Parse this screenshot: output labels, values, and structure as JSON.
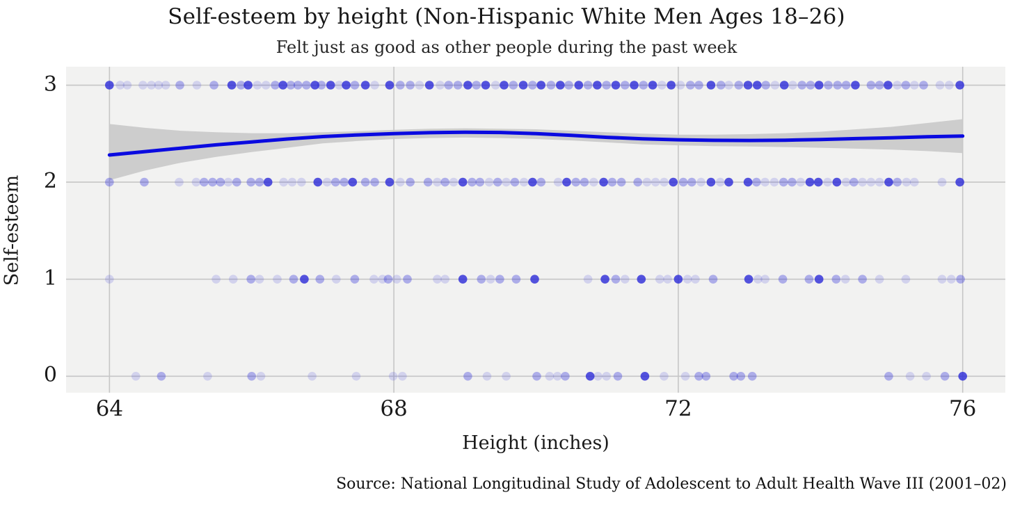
{
  "chart_data": {
    "type": "scatter",
    "title": "Self-esteem by height (Non-Hispanic White Men Ages 18–26)",
    "subtitle": "Felt just as good as other people during the past week",
    "xlabel": "Height (inches)",
    "ylabel": "Self-esteem",
    "caption": "Source: National Longitudinal Study of Adolescent to Adult Health Wave III (2001–02)",
    "x_ticks": [
      64,
      68,
      72,
      76
    ],
    "y_ticks": [
      0,
      1,
      2,
      3
    ],
    "xlim": [
      63.39,
      76.6
    ],
    "ylim": [
      -0.17,
      3.19
    ],
    "grid": true,
    "legend": "none",
    "colors": {
      "point": "#2a29d8",
      "trend": "#0a0ae0",
      "band": "#c9c9c9",
      "plot_bg": "#f2f2f1",
      "grid": "#c6c6c6",
      "text": "#1a1a1a"
    },
    "point_radius": 6.3,
    "alpha": {
      "l": 0.16,
      "m": 0.34,
      "d": 0.8
    },
    "trend_note": "loess fit of self-esteem on height with 95% confidence band",
    "trend": [
      [
        64,
        2.28
      ],
      [
        64.5,
        2.315
      ],
      [
        65,
        2.35
      ],
      [
        65.5,
        2.385
      ],
      [
        66,
        2.415
      ],
      [
        66.5,
        2.445
      ],
      [
        67,
        2.47
      ],
      [
        67.5,
        2.487
      ],
      [
        68,
        2.5
      ],
      [
        68.5,
        2.51
      ],
      [
        69,
        2.515
      ],
      [
        69.5,
        2.512
      ],
      [
        70,
        2.5
      ],
      [
        70.5,
        2.482
      ],
      [
        71,
        2.462
      ],
      [
        71.5,
        2.447
      ],
      [
        72,
        2.437
      ],
      [
        72.5,
        2.431
      ],
      [
        73,
        2.43
      ],
      [
        73.5,
        2.433
      ],
      [
        74,
        2.44
      ],
      [
        74.5,
        2.449
      ],
      [
        75,
        2.458
      ],
      [
        75.5,
        2.468
      ],
      [
        76,
        2.475
      ]
    ],
    "band": [
      [
        64,
        2.02,
        2.6
      ],
      [
        64.5,
        2.12,
        2.56
      ],
      [
        65,
        2.2,
        2.53
      ],
      [
        65.5,
        2.26,
        2.515
      ],
      [
        66,
        2.31,
        2.505
      ],
      [
        66.5,
        2.355,
        2.505
      ],
      [
        67,
        2.4,
        2.515
      ],
      [
        67.5,
        2.425,
        2.525
      ],
      [
        68,
        2.445,
        2.54
      ],
      [
        68.5,
        2.455,
        2.55
      ],
      [
        69,
        2.46,
        2.555
      ],
      [
        69.5,
        2.455,
        2.55
      ],
      [
        70,
        2.445,
        2.545
      ],
      [
        70.5,
        2.43,
        2.53
      ],
      [
        71,
        2.41,
        2.515
      ],
      [
        71.5,
        2.39,
        2.5
      ],
      [
        72,
        2.38,
        2.49
      ],
      [
        72.5,
        2.372,
        2.49
      ],
      [
        73,
        2.368,
        2.495
      ],
      [
        73.5,
        2.362,
        2.505
      ],
      [
        74,
        2.355,
        2.52
      ],
      [
        74.5,
        2.345,
        2.545
      ],
      [
        75,
        2.335,
        2.57
      ],
      [
        75.5,
        2.32,
        2.61
      ],
      [
        76,
        2.3,
        2.65
      ]
    ],
    "points": {
      "3": [
        [
          64.0,
          "d"
        ],
        [
          64.15,
          "l"
        ],
        [
          64.25,
          "l"
        ],
        [
          64.47,
          "l"
        ],
        [
          64.59,
          "l"
        ],
        [
          64.69,
          "l"
        ],
        [
          64.79,
          "l"
        ],
        [
          64.99,
          "m"
        ],
        [
          65.23,
          "l"
        ],
        [
          65.47,
          "m"
        ],
        [
          65.72,
          "d"
        ],
        [
          65.85,
          "m"
        ],
        [
          65.95,
          "d"
        ],
        [
          66.08,
          "l"
        ],
        [
          66.2,
          "l"
        ],
        [
          66.33,
          "m"
        ],
        [
          66.44,
          "d"
        ],
        [
          66.55,
          "m"
        ],
        [
          66.65,
          "m"
        ],
        [
          66.77,
          "m"
        ],
        [
          66.89,
          "d"
        ],
        [
          66.98,
          "m"
        ],
        [
          67.11,
          "d"
        ],
        [
          67.23,
          "l"
        ],
        [
          67.33,
          "d"
        ],
        [
          67.45,
          "m"
        ],
        [
          67.6,
          "d"
        ],
        [
          67.73,
          "l"
        ],
        [
          67.94,
          "d"
        ],
        [
          68.09,
          "m"
        ],
        [
          68.23,
          "m"
        ],
        [
          68.36,
          "l"
        ],
        [
          68.5,
          "d"
        ],
        [
          68.65,
          "l"
        ],
        [
          68.77,
          "m"
        ],
        [
          68.9,
          "m"
        ],
        [
          69.04,
          "d"
        ],
        [
          69.16,
          "m"
        ],
        [
          69.29,
          "d"
        ],
        [
          69.43,
          "l"
        ],
        [
          69.55,
          "d"
        ],
        [
          69.68,
          "m"
        ],
        [
          69.82,
          "d"
        ],
        [
          69.95,
          "m"
        ],
        [
          70.07,
          "d"
        ],
        [
          70.21,
          "m"
        ],
        [
          70.34,
          "d"
        ],
        [
          70.46,
          "m"
        ],
        [
          70.6,
          "d"
        ],
        [
          70.73,
          "m"
        ],
        [
          70.86,
          "d"
        ],
        [
          70.99,
          "m"
        ],
        [
          71.12,
          "d"
        ],
        [
          71.25,
          "m"
        ],
        [
          71.38,
          "d"
        ],
        [
          71.51,
          "m"
        ],
        [
          71.64,
          "d"
        ],
        [
          71.77,
          "l"
        ],
        [
          71.9,
          "d"
        ],
        [
          72.03,
          "l"
        ],
        [
          72.17,
          "m"
        ],
        [
          72.29,
          "m"
        ],
        [
          72.46,
          "d"
        ],
        [
          72.6,
          "m"
        ],
        [
          72.71,
          "l"
        ],
        [
          72.85,
          "m"
        ],
        [
          72.98,
          "d"
        ],
        [
          73.11,
          "d"
        ],
        [
          73.23,
          "m"
        ],
        [
          73.36,
          "l"
        ],
        [
          73.49,
          "d"
        ],
        [
          73.61,
          "l"
        ],
        [
          73.74,
          "m"
        ],
        [
          73.86,
          "m"
        ],
        [
          73.98,
          "d"
        ],
        [
          74.11,
          "m"
        ],
        [
          74.24,
          "m"
        ],
        [
          74.36,
          "m"
        ],
        [
          74.49,
          "d"
        ],
        [
          74.71,
          "m"
        ],
        [
          74.83,
          "m"
        ],
        [
          74.95,
          "d"
        ],
        [
          75.08,
          "l"
        ],
        [
          75.2,
          "m"
        ],
        [
          75.32,
          "l"
        ],
        [
          75.45,
          "m"
        ],
        [
          75.68,
          "l"
        ],
        [
          75.81,
          "l"
        ],
        [
          75.96,
          "d"
        ]
      ],
      "2": [
        [
          64.0,
          "m"
        ],
        [
          64.49,
          "m"
        ],
        [
          64.98,
          "l"
        ],
        [
          65.22,
          "l"
        ],
        [
          65.33,
          "m"
        ],
        [
          65.45,
          "m"
        ],
        [
          65.56,
          "m"
        ],
        [
          65.67,
          "l"
        ],
        [
          65.79,
          "m"
        ],
        [
          65.99,
          "m"
        ],
        [
          66.11,
          "m"
        ],
        [
          66.23,
          "d"
        ],
        [
          66.45,
          "l"
        ],
        [
          66.57,
          "l"
        ],
        [
          66.7,
          "l"
        ],
        [
          66.93,
          "d"
        ],
        [
          67.06,
          "l"
        ],
        [
          67.18,
          "m"
        ],
        [
          67.3,
          "m"
        ],
        [
          67.42,
          "d"
        ],
        [
          67.6,
          "m"
        ],
        [
          67.73,
          "m"
        ],
        [
          67.94,
          "d"
        ],
        [
          68.09,
          "l"
        ],
        [
          68.23,
          "m"
        ],
        [
          68.48,
          "m"
        ],
        [
          68.61,
          "l"
        ],
        [
          68.72,
          "m"
        ],
        [
          68.84,
          "l"
        ],
        [
          68.97,
          "d"
        ],
        [
          69.1,
          "m"
        ],
        [
          69.21,
          "m"
        ],
        [
          69.34,
          "l"
        ],
        [
          69.46,
          "m"
        ],
        [
          69.58,
          "l"
        ],
        [
          69.7,
          "m"
        ],
        [
          69.83,
          "l"
        ],
        [
          69.95,
          "d"
        ],
        [
          70.07,
          "m"
        ],
        [
          70.31,
          "l"
        ],
        [
          70.43,
          "d"
        ],
        [
          70.56,
          "m"
        ],
        [
          70.68,
          "m"
        ],
        [
          70.81,
          "l"
        ],
        [
          70.95,
          "d"
        ],
        [
          71.07,
          "m"
        ],
        [
          71.2,
          "m"
        ],
        [
          71.43,
          "m"
        ],
        [
          71.56,
          "l"
        ],
        [
          71.68,
          "l"
        ],
        [
          71.8,
          "l"
        ],
        [
          71.93,
          "d"
        ],
        [
          72.07,
          "m"
        ],
        [
          72.19,
          "m"
        ],
        [
          72.32,
          "l"
        ],
        [
          72.46,
          "d"
        ],
        [
          72.59,
          "l"
        ],
        [
          72.71,
          "d"
        ],
        [
          72.98,
          "d"
        ],
        [
          73.1,
          "m"
        ],
        [
          73.22,
          "l"
        ],
        [
          73.35,
          "l"
        ],
        [
          73.48,
          "m"
        ],
        [
          73.6,
          "m"
        ],
        [
          73.72,
          "l"
        ],
        [
          73.85,
          "d"
        ],
        [
          73.97,
          "d"
        ],
        [
          74.1,
          "l"
        ],
        [
          74.23,
          "d"
        ],
        [
          74.36,
          "l"
        ],
        [
          74.47,
          "m"
        ],
        [
          74.59,
          "l"
        ],
        [
          74.71,
          "l"
        ],
        [
          74.83,
          "l"
        ],
        [
          74.96,
          "d"
        ],
        [
          75.08,
          "m"
        ],
        [
          75.21,
          "l"
        ],
        [
          75.32,
          "l"
        ],
        [
          75.71,
          "l"
        ],
        [
          75.96,
          "d"
        ]
      ],
      "1": [
        [
          64.0,
          "l"
        ],
        [
          65.5,
          "l"
        ],
        [
          65.74,
          "l"
        ],
        [
          65.99,
          "m"
        ],
        [
          66.11,
          "l"
        ],
        [
          66.36,
          "l"
        ],
        [
          66.59,
          "m"
        ],
        [
          66.74,
          "d"
        ],
        [
          66.96,
          "m"
        ],
        [
          67.19,
          "l"
        ],
        [
          67.45,
          "m"
        ],
        [
          67.72,
          "l"
        ],
        [
          67.84,
          "l"
        ],
        [
          67.92,
          "m"
        ],
        [
          68.04,
          "l"
        ],
        [
          68.19,
          "m"
        ],
        [
          68.61,
          "l"
        ],
        [
          68.72,
          "l"
        ],
        [
          68.97,
          "d"
        ],
        [
          69.23,
          "m"
        ],
        [
          69.36,
          "l"
        ],
        [
          69.49,
          "m"
        ],
        [
          69.72,
          "m"
        ],
        [
          69.98,
          "d"
        ],
        [
          70.73,
          "l"
        ],
        [
          70.97,
          "d"
        ],
        [
          71.12,
          "m"
        ],
        [
          71.25,
          "l"
        ],
        [
          71.48,
          "d"
        ],
        [
          71.74,
          "l"
        ],
        [
          71.85,
          "l"
        ],
        [
          72.0,
          "d"
        ],
        [
          72.13,
          "l"
        ],
        [
          72.24,
          "l"
        ],
        [
          72.49,
          "m"
        ],
        [
          72.99,
          "d"
        ],
        [
          73.12,
          "l"
        ],
        [
          73.22,
          "l"
        ],
        [
          73.47,
          "m"
        ],
        [
          73.84,
          "m"
        ],
        [
          73.98,
          "d"
        ],
        [
          74.22,
          "m"
        ],
        [
          74.35,
          "l"
        ],
        [
          74.59,
          "m"
        ],
        [
          74.83,
          "l"
        ],
        [
          75.2,
          "l"
        ],
        [
          75.71,
          "l"
        ],
        [
          75.84,
          "l"
        ],
        [
          75.97,
          "m"
        ]
      ],
      "0": [
        [
          64.37,
          "l"
        ],
        [
          64.73,
          "m"
        ],
        [
          65.38,
          "l"
        ],
        [
          66.0,
          "m"
        ],
        [
          66.13,
          "l"
        ],
        [
          66.85,
          "l"
        ],
        [
          67.47,
          "l"
        ],
        [
          67.99,
          "l"
        ],
        [
          68.12,
          "l"
        ],
        [
          69.04,
          "m"
        ],
        [
          69.31,
          "l"
        ],
        [
          69.58,
          "l"
        ],
        [
          70.01,
          "m"
        ],
        [
          70.19,
          "l"
        ],
        [
          70.3,
          "l"
        ],
        [
          70.41,
          "m"
        ],
        [
          70.76,
          "d"
        ],
        [
          70.87,
          "l"
        ],
        [
          70.99,
          "l"
        ],
        [
          71.15,
          "m"
        ],
        [
          71.53,
          "d"
        ],
        [
          71.8,
          "l"
        ],
        [
          72.1,
          "l"
        ],
        [
          72.29,
          "m"
        ],
        [
          72.39,
          "m"
        ],
        [
          72.78,
          "m"
        ],
        [
          72.88,
          "m"
        ],
        [
          73.04,
          "m"
        ],
        [
          74.96,
          "m"
        ],
        [
          75.26,
          "l"
        ],
        [
          75.49,
          "l"
        ],
        [
          75.75,
          "m"
        ],
        [
          76.0,
          "d"
        ]
      ]
    }
  }
}
